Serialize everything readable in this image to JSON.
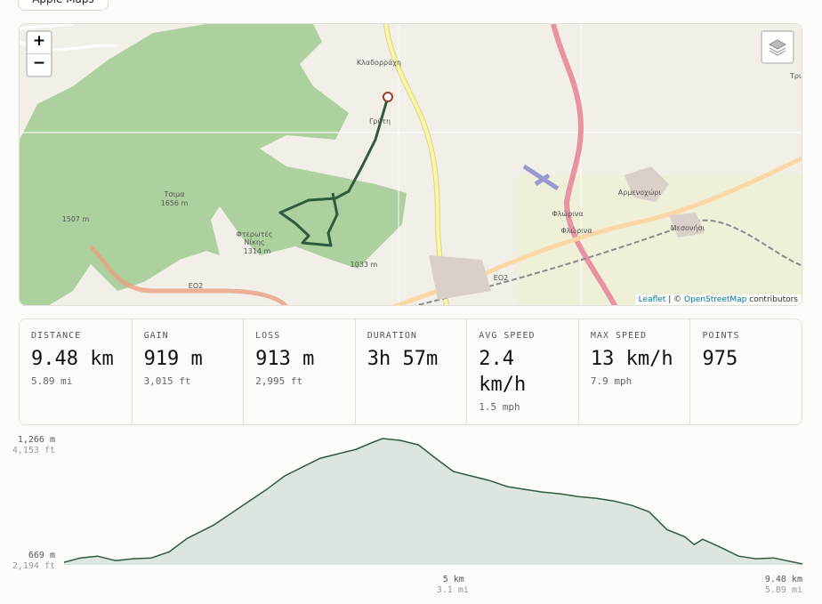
{
  "header": {
    "button": "Apple Maps"
  },
  "map": {
    "zoom_in": "+",
    "zoom_out": "−",
    "labels": [
      "Κλαδορράχη",
      "Γρύτη",
      "Αρμενοχώρι",
      "Μεσονήσι",
      "Φλώρινα",
      "Φλώρινα",
      "ΕΟ2",
      "ΕΟ2",
      "Τσιμα",
      "1656 m",
      "1507 m",
      "Φτερωτές",
      "Νίκης",
      "1314 m",
      "1033 m",
      "Τρι"
    ],
    "attribution": {
      "leaflet": "Leaflet",
      "separator": "|",
      "prefix": "©",
      "link": "OpenStreetMap",
      "suffix": "contributors"
    }
  },
  "stats": [
    {
      "label": "DISTANCE",
      "value": "9.48 km",
      "sub": "5.89 mi"
    },
    {
      "label": "GAIN",
      "value": "919 m",
      "sub": "3,015 ft"
    },
    {
      "label": "LOSS",
      "value": "913 m",
      "sub": "2,995 ft"
    },
    {
      "label": "DURATION",
      "value": "3h 57m"
    },
    {
      "label": "AVG SPEED",
      "value": "2.4 km/h",
      "sub": "1.5 mph"
    },
    {
      "label": "MAX SPEED",
      "value": "13 km/h",
      "sub": "7.9 mph"
    },
    {
      "label": "POINTS",
      "value": "975"
    }
  ],
  "chart_data": {
    "type": "area",
    "x": [
      0,
      0.21,
      0.43,
      0.66,
      0.89,
      1.12,
      1.35,
      1.58,
      1.92,
      2.26,
      2.6,
      2.83,
      3.06,
      3.29,
      3.52,
      3.75,
      3.97,
      4.09,
      4.32,
      4.55,
      4.77,
      5.0,
      5.23,
      5.46,
      5.69,
      5.92,
      6.15,
      6.37,
      6.6,
      6.83,
      7.06,
      7.29,
      7.51,
      7.74,
      7.97,
      8.09,
      8.2,
      8.43,
      8.66,
      8.88,
      9.11,
      9.48
    ],
    "series": [
      {
        "color": "#2f5a3e",
        "values": [
          681,
          702,
          710,
          689,
          698,
          702,
          731,
          794,
          857,
          941,
          1025,
          1089,
          1131,
          1173,
          1194,
          1215,
          1249,
          1266,
          1257,
          1236,
          1173,
          1110,
          1089,
          1068,
          1039,
          1025,
          1013,
          1005,
          992,
          984,
          971,
          950,
          920,
          836,
          802,
          765,
          790,
          752,
          710,
          698,
          702,
          673
        ]
      }
    ],
    "fill": "#dce6de",
    "xlim": [
      0,
      9.48
    ],
    "xticks": [
      {
        "value": 5,
        "label": "5 km"
      },
      {
        "value": 9.48,
        "label": "9.48 km"
      }
    ],
    "x2lim": [
      0,
      5.89
    ],
    "x2ticks": [
      {
        "value": 3.1,
        "label": "3.1 mi"
      },
      {
        "value": 5.89,
        "label": "5.89 mi"
      }
    ],
    "ylim": [
      669,
      1266
    ],
    "yticks": [
      {
        "value": 1266,
        "label": "1,266 m"
      },
      {
        "value": 669,
        "label": "669 m"
      }
    ],
    "y2lim": [
      2194,
      4153
    ],
    "y2ticks": [
      {
        "value": 4153,
        "label": "4,153 ft"
      },
      {
        "value": 2194,
        "label": "2,194 ft"
      }
    ]
  }
}
